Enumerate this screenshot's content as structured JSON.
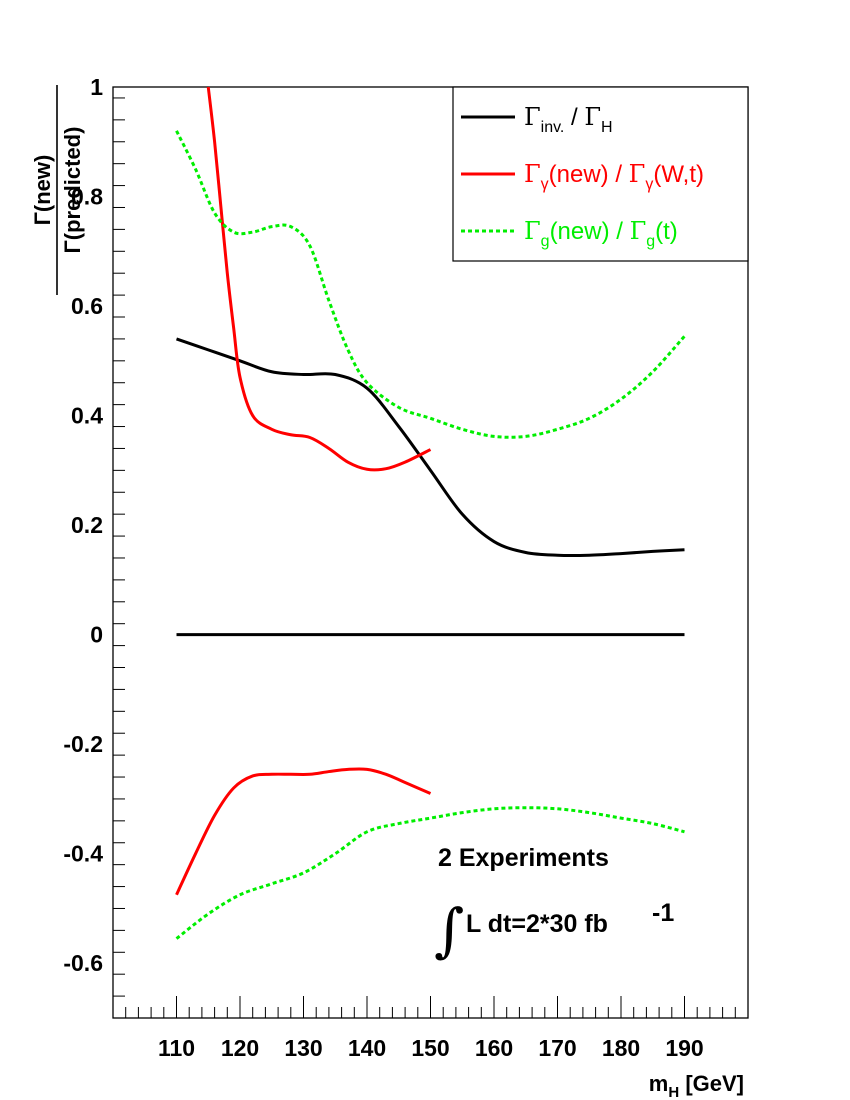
{
  "chart_data": {
    "type": "line",
    "xlabel": {
      "main": "m",
      "sub": "H",
      "rest": " [GeV]"
    },
    "ylabel": {
      "numerator": "Γ(new)",
      "denominator": "Γ(predicted)"
    },
    "xlim": [
      100,
      200
    ],
    "ylim": [
      -0.7,
      1.0
    ],
    "x_ticks": [
      110,
      120,
      130,
      140,
      150,
      160,
      170,
      180,
      190
    ],
    "x_tick_labels": [
      "110",
      "120",
      "130",
      "140",
      "150",
      "160",
      "170",
      "180",
      "190"
    ],
    "y_ticks": [
      -0.6,
      -0.4,
      -0.2,
      0,
      0.2,
      0.4,
      0.6,
      0.8,
      1
    ],
    "y_tick_labels": [
      "-0.6",
      "-0.4",
      "-0.2",
      "0",
      "0.2",
      "0.4",
      "0.6",
      "0.8",
      "1"
    ],
    "series": [
      {
        "name": "Γinv. / ΓH",
        "color": "#000000",
        "style": "solid",
        "x": [
          110,
          115,
          120,
          125,
          130,
          135,
          140,
          145,
          150,
          155,
          160,
          165,
          170,
          175,
          180,
          185,
          190
        ],
        "y": [
          0.54,
          0.52,
          0.5,
          0.48,
          0.475,
          0.475,
          0.45,
          0.38,
          0.3,
          0.22,
          0.17,
          0.15,
          0.145,
          0.145,
          0.148,
          0.152,
          0.155
        ]
      },
      {
        "name": "Γinv. / ΓH (lower)",
        "color": "#000000",
        "style": "solid",
        "x": [
          110,
          190
        ],
        "y": [
          0.0,
          0.0
        ]
      },
      {
        "name": "Γγ(new) / Γγ(W,t)",
        "color": "#ff0000",
        "style": "solid",
        "x": [
          115,
          116,
          117,
          118,
          119,
          120,
          122,
          125,
          128,
          131,
          134,
          137,
          140,
          143,
          146,
          150
        ],
        "y": [
          1.0,
          0.9,
          0.78,
          0.66,
          0.56,
          0.47,
          0.4,
          0.375,
          0.365,
          0.36,
          0.34,
          0.315,
          0.302,
          0.303,
          0.315,
          0.338
        ]
      },
      {
        "name": "Γγ(new) / Γγ(W,t) (lower)",
        "color": "#ff0000",
        "style": "solid",
        "x": [
          110,
          113,
          116,
          119,
          122,
          125,
          128,
          131,
          134,
          137,
          140,
          143,
          146,
          150
        ],
        "y": [
          -0.475,
          -0.4,
          -0.33,
          -0.28,
          -0.258,
          -0.255,
          -0.255,
          -0.255,
          -0.25,
          -0.246,
          -0.246,
          -0.255,
          -0.27,
          -0.29
        ]
      },
      {
        "name": "Γg(new) / Γg(t)",
        "color": "#00ee00",
        "style": "dotted",
        "x": [
          110,
          113,
          116,
          119,
          122,
          125,
          128,
          131,
          134,
          137,
          140,
          145,
          150,
          155,
          160,
          165,
          170,
          175,
          180,
          185,
          190
        ],
        "y": [
          0.92,
          0.85,
          0.77,
          0.735,
          0.735,
          0.745,
          0.745,
          0.71,
          0.61,
          0.52,
          0.46,
          0.415,
          0.395,
          0.375,
          0.362,
          0.362,
          0.375,
          0.395,
          0.43,
          0.48,
          0.545
        ]
      },
      {
        "name": "Γg(new) / Γg(t) (lower)",
        "color": "#00ee00",
        "style": "dotted",
        "x": [
          110,
          115,
          120,
          125,
          130,
          135,
          140,
          145,
          150,
          155,
          160,
          165,
          170,
          175,
          180,
          185,
          190
        ],
        "y": [
          -0.555,
          -0.51,
          -0.475,
          -0.455,
          -0.435,
          -0.4,
          -0.36,
          -0.345,
          -0.335,
          -0.325,
          -0.318,
          -0.316,
          -0.318,
          -0.325,
          -0.335,
          -0.345,
          -0.36
        ]
      }
    ],
    "legend": {
      "position": "top-right",
      "entries": [
        {
          "color": "#000000",
          "style": "solid",
          "parts": [
            [
              "g",
              "Γ"
            ],
            [
              "s",
              "inv."
            ],
            [
              "t",
              " / "
            ],
            [
              "g",
              "Γ"
            ],
            [
              "s",
              "H"
            ]
          ]
        },
        {
          "color": "#ff0000",
          "style": "solid",
          "parts": [
            [
              "g",
              "Γ"
            ],
            [
              "s",
              "γ"
            ],
            [
              "t",
              "(new) / "
            ],
            [
              "g",
              "Γ"
            ],
            [
              "s",
              "γ"
            ],
            [
              "t",
              "(W,t)"
            ]
          ]
        },
        {
          "color": "#00ee00",
          "style": "dotted",
          "parts": [
            [
              "g",
              "Γ"
            ],
            [
              "s",
              "g"
            ],
            [
              "t",
              "(new) / "
            ],
            [
              "g",
              "Γ"
            ],
            [
              "s",
              "g"
            ],
            [
              "t",
              "(t)"
            ]
          ]
        }
      ]
    },
    "annotations": {
      "line1": "2 Experiments",
      "integral": "∫",
      "line2": "L dt=2*30 fb",
      "exponent": "-1"
    }
  }
}
